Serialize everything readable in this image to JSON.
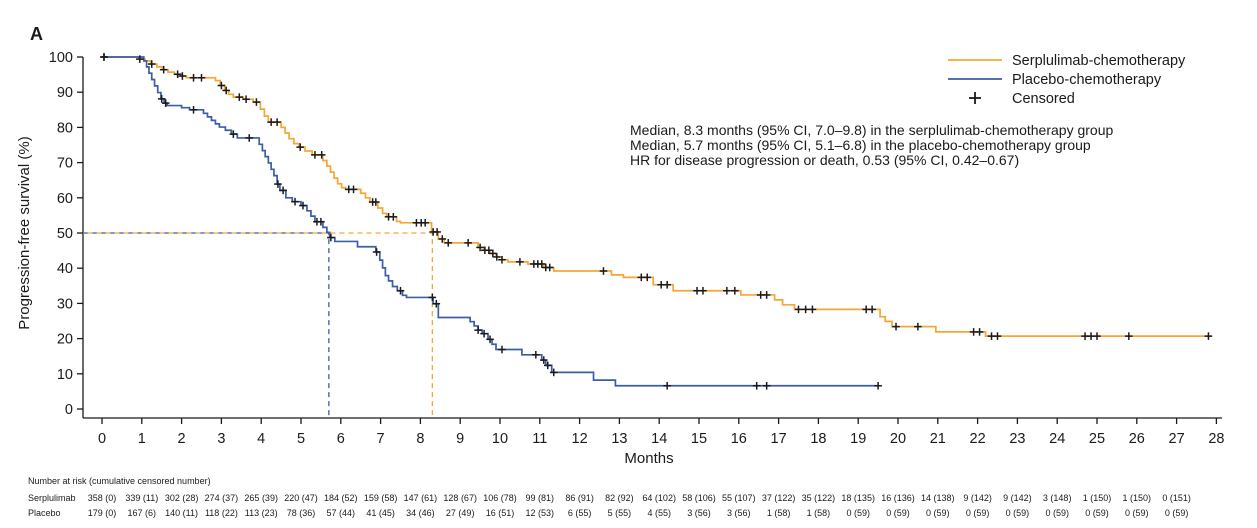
{
  "figure": {
    "panel_label": "A"
  },
  "colors": {
    "serplulimab": "#F6A634",
    "placebo": "#3D5DA7",
    "censor": "#1a1a1a",
    "axis": "#1a1a1a"
  },
  "legend": {
    "items": [
      {
        "label": "Serplulimab-chemotherapy",
        "swatch": "line-icon",
        "color": "#F6A634"
      },
      {
        "label": "Placebo-chemotherapy",
        "swatch": "line-icon",
        "color": "#3D5DA7"
      },
      {
        "label": "Censored",
        "swatch": "plus-icon",
        "color": "#1a1a1a"
      }
    ]
  },
  "annotations": {
    "lines": [
      "Median, 8.3 months (95% CI, 7.0–9.8) in the serplulimab-chemotherapy group",
      "Median, 5.7 months (95% CI, 5.1–6.8) in the placebo-chemotherapy group",
      "HR for disease progression or death, 0.53 (95% CI, 0.42–0.67)"
    ]
  },
  "chart_data": {
    "type": "line",
    "subtype": "kaplan-meier-step",
    "title": "",
    "xlabel": "Months",
    "ylabel": "Progression-free survival (%)",
    "xlim": [
      0,
      28
    ],
    "ylim": [
      0,
      100
    ],
    "xticks": [
      0,
      1,
      2,
      3,
      4,
      5,
      6,
      7,
      8,
      9,
      10,
      11,
      12,
      13,
      14,
      15,
      16,
      17,
      18,
      19,
      20,
      21,
      22,
      23,
      24,
      25,
      26,
      27,
      28
    ],
    "yticks": [
      0,
      10,
      20,
      30,
      40,
      50,
      60,
      70,
      80,
      90,
      100
    ],
    "grid": false,
    "legend_position": "top-right",
    "medians": [
      {
        "group": "Serplulimab-chemotherapy",
        "median_months": 8.3,
        "ci_95": "7.0–9.8"
      },
      {
        "group": "Placebo-chemotherapy",
        "median_months": 5.7,
        "ci_95": "5.1–6.8"
      }
    ],
    "hazard_ratio": {
      "label": "HR for disease progression or death",
      "value": 0.53,
      "ci_95": "0.42–0.67"
    },
    "series": [
      {
        "name": "Serplulimab-chemotherapy",
        "color": "#F6A634",
        "end_time": 27.85,
        "steps": [
          [
            0,
            100
          ],
          [
            0.92,
            99.4
          ],
          [
            1.08,
            98.9
          ],
          [
            1.22,
            98
          ],
          [
            1.38,
            97.2
          ],
          [
            1.52,
            96.4
          ],
          [
            1.66,
            95.7
          ],
          [
            1.82,
            95.1
          ],
          [
            1.98,
            94.6
          ],
          [
            2.12,
            94.1
          ],
          [
            2.85,
            93.3
          ],
          [
            2.97,
            91.9
          ],
          [
            3.08,
            90.5
          ],
          [
            3.18,
            89.4
          ],
          [
            3.3,
            88.6
          ],
          [
            3.55,
            88
          ],
          [
            3.8,
            87.2
          ],
          [
            3.98,
            85.2
          ],
          [
            4.08,
            83.2
          ],
          [
            4.18,
            81.5
          ],
          [
            4.5,
            80
          ],
          [
            4.6,
            78.4
          ],
          [
            4.7,
            76.8
          ],
          [
            4.82,
            75.4
          ],
          [
            4.95,
            74.4
          ],
          [
            5.1,
            73.3
          ],
          [
            5.28,
            72.2
          ],
          [
            5.55,
            70.6
          ],
          [
            5.65,
            69
          ],
          [
            5.74,
            67.3
          ],
          [
            5.83,
            65.6
          ],
          [
            5.92,
            64
          ],
          [
            6.02,
            62.9
          ],
          [
            6.12,
            62.4
          ],
          [
            6.5,
            61.3
          ],
          [
            6.62,
            60
          ],
          [
            6.73,
            58.8
          ],
          [
            6.93,
            57.1
          ],
          [
            7.05,
            55.6
          ],
          [
            7.15,
            54.6
          ],
          [
            7.4,
            53.3
          ],
          [
            7.5,
            52.9
          ],
          [
            8.28,
            50.3
          ],
          [
            8.45,
            48.3
          ],
          [
            8.6,
            47.2
          ],
          [
            9.45,
            45.9
          ],
          [
            9.6,
            45.1
          ],
          [
            9.75,
            44.2
          ],
          [
            9.9,
            43.2
          ],
          [
            10.05,
            42.4
          ],
          [
            10.2,
            41.8
          ],
          [
            10.7,
            41.2
          ],
          [
            11.1,
            40.2
          ],
          [
            11.35,
            39.2
          ],
          [
            12.8,
            38.1
          ],
          [
            13.1,
            37.4
          ],
          [
            13.85,
            35.3
          ],
          [
            14.35,
            33.6
          ],
          [
            16.05,
            32.4
          ],
          [
            16.9,
            31
          ],
          [
            17.1,
            29.6
          ],
          [
            17.4,
            28.3
          ],
          [
            19.55,
            26.2
          ],
          [
            19.68,
            24.9
          ],
          [
            19.85,
            23.4
          ],
          [
            20.95,
            21.9
          ],
          [
            22.2,
            20.7
          ]
        ],
        "censor_times": [
          0.05,
          0.95,
          1.25,
          1.55,
          1.9,
          2.02,
          2.3,
          2.5,
          3.0,
          3.12,
          3.45,
          3.62,
          3.88,
          4.25,
          4.4,
          4.98,
          5.35,
          5.52,
          6.2,
          6.32,
          6.8,
          6.88,
          7.2,
          7.32,
          7.9,
          8.02,
          8.12,
          8.32,
          8.42,
          8.55,
          8.7,
          9.2,
          9.5,
          9.62,
          9.72,
          9.82,
          9.92,
          10.05,
          10.5,
          10.85,
          10.95,
          11.05,
          11.15,
          11.25,
          12.6,
          13.55,
          13.7,
          14.05,
          14.2,
          14.95,
          15.1,
          15.7,
          15.9,
          16.55,
          16.7,
          17.5,
          17.68,
          17.85,
          19.2,
          19.35,
          19.95,
          20.5,
          21.9,
          22.05,
          22.35,
          22.5,
          24.7,
          24.85,
          25.0,
          25.8,
          27.8
        ]
      },
      {
        "name": "Placebo-chemotherapy",
        "color": "#3D5DA7",
        "end_time": 19.5,
        "steps": [
          [
            0,
            100
          ],
          [
            1.05,
            98.9
          ],
          [
            1.12,
            97.2
          ],
          [
            1.18,
            95.4
          ],
          [
            1.25,
            93.6
          ],
          [
            1.32,
            91.8
          ],
          [
            1.4,
            89.9
          ],
          [
            1.48,
            88.1
          ],
          [
            1.56,
            86.9
          ],
          [
            1.64,
            86.2
          ],
          [
            2.0,
            85.6
          ],
          [
            2.2,
            85
          ],
          [
            2.55,
            84
          ],
          [
            2.65,
            83
          ],
          [
            2.75,
            82
          ],
          [
            2.85,
            81
          ],
          [
            2.95,
            80.1
          ],
          [
            3.1,
            79.2
          ],
          [
            3.25,
            78.1
          ],
          [
            3.4,
            77
          ],
          [
            3.95,
            75.2
          ],
          [
            4.03,
            73.4
          ],
          [
            4.1,
            71.7
          ],
          [
            4.18,
            69.9
          ],
          [
            4.25,
            68.1
          ],
          [
            4.32,
            66.3
          ],
          [
            4.4,
            63.9
          ],
          [
            4.47,
            62.1
          ],
          [
            4.62,
            60
          ],
          [
            4.78,
            58.9
          ],
          [
            5.0,
            57.8
          ],
          [
            5.15,
            56.3
          ],
          [
            5.25,
            54.8
          ],
          [
            5.35,
            53.2
          ],
          [
            5.55,
            51.6
          ],
          [
            5.65,
            50.2
          ],
          [
            5.72,
            48.7
          ],
          [
            5.85,
            47.6
          ],
          [
            6.42,
            46.1
          ],
          [
            6.88,
            44.6
          ],
          [
            6.98,
            42.3
          ],
          [
            7.05,
            40.1
          ],
          [
            7.12,
            37.9
          ],
          [
            7.2,
            36.4
          ],
          [
            7.3,
            34.8
          ],
          [
            7.42,
            33.6
          ],
          [
            7.55,
            32.3
          ],
          [
            7.65,
            31.7
          ],
          [
            8.32,
            29.9
          ],
          [
            8.45,
            26
          ],
          [
            9.25,
            24.8
          ],
          [
            9.35,
            23.6
          ],
          [
            9.45,
            22.4
          ],
          [
            9.55,
            21.4
          ],
          [
            9.7,
            19.8
          ],
          [
            9.8,
            18.4
          ],
          [
            9.9,
            16.9
          ],
          [
            10.55,
            15.4
          ],
          [
            11.05,
            13.9
          ],
          [
            11.15,
            12.4
          ],
          [
            11.3,
            10.4
          ],
          [
            12.35,
            8.2
          ],
          [
            12.9,
            6.6
          ]
        ],
        "censor_times": [
          0.05,
          1.5,
          1.6,
          2.3,
          3.3,
          3.7,
          4.42,
          4.55,
          4.85,
          5.05,
          5.4,
          5.5,
          5.75,
          6.9,
          7.5,
          8.3,
          8.4,
          9.45,
          9.6,
          9.75,
          10.05,
          10.9,
          11.1,
          11.2,
          11.35,
          14.2,
          16.45,
          16.7,
          19.5
        ]
      }
    ],
    "at_risk": {
      "header": "Number at risk (cumulative censored number)",
      "months": [
        0,
        1,
        2,
        3,
        4,
        5,
        6,
        7,
        8,
        9,
        10,
        11,
        12,
        13,
        14,
        15,
        16,
        17,
        18,
        19,
        20,
        21,
        22,
        23,
        24,
        25,
        26,
        27
      ],
      "rows": [
        {
          "label": "Serplulimab",
          "values": [
            "358 (0)",
            "339 (11)",
            "302 (28)",
            "274 (37)",
            "265 (39)",
            "220 (47)",
            "184 (52)",
            "159 (58)",
            "147 (61)",
            "128 (67)",
            "106 (78)",
            "99 (81)",
            "86 (91)",
            "82 (92)",
            "64 (102)",
            "58 (106)",
            "55 (107)",
            "37 (122)",
            "35 (122)",
            "18 (135)",
            "16 (136)",
            "14 (138)",
            "9 (142)",
            "9 (142)",
            "3 (148)",
            "1 (150)",
            "1 (150)",
            "0 (151)"
          ]
        },
        {
          "label": "Placebo",
          "values": [
            "179 (0)",
            "167 (6)",
            "140 (11)",
            "118 (22)",
            "113 (23)",
            "78 (36)",
            "57 (44)",
            "41 (45)",
            "34 (46)",
            "27 (49)",
            "16 (51)",
            "12 (53)",
            "6 (55)",
            "5 (55)",
            "4 (55)",
            "3 (56)",
            "3 (56)",
            "1 (58)",
            "1 (58)",
            "0 (59)",
            "0 (59)",
            "0 (59)",
            "0 (59)",
            "0 (59)",
            "0 (59)",
            "0 (59)",
            "0 (59)",
            "0 (59)"
          ]
        }
      ]
    }
  }
}
